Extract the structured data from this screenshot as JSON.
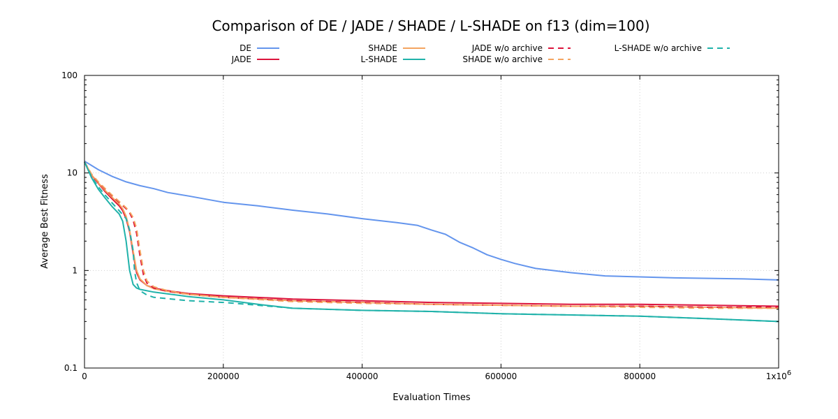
{
  "chart_data": {
    "type": "line",
    "title": "Comparison of DE / JADE / SHADE / L-SHADE on f13 (dim=100)",
    "xlabel": "Evaluation Times",
    "ylabel": "Average Best Fitness",
    "xlim": [
      0,
      1000000
    ],
    "ylim": [
      0.1,
      100
    ],
    "yscale": "log",
    "grid": true,
    "legend_position": "top",
    "x_ticks": [
      {
        "value": 0,
        "label": "0"
      },
      {
        "value": 200000,
        "label": "200000"
      },
      {
        "value": 400000,
        "label": "400000"
      },
      {
        "value": 600000,
        "label": "600000"
      },
      {
        "value": 800000,
        "label": "800000"
      }
    ],
    "x_max_label": {
      "value": 1000000,
      "base": "1x10",
      "exponent": "6"
    },
    "y_ticks": [
      {
        "value": 0.1,
        "label": "0.1"
      },
      {
        "value": 1,
        "label": "1"
      },
      {
        "value": 10,
        "label": "10"
      },
      {
        "value": 100,
        "label": "100"
      }
    ],
    "series": [
      {
        "name": "DE",
        "color": "#6495ED",
        "dash": "solid",
        "legend_col": 0,
        "legend_row": 0,
        "points": [
          [
            0,
            13.2
          ],
          [
            20000,
            10.8
          ],
          [
            40000,
            9.2
          ],
          [
            60000,
            8.1
          ],
          [
            80000,
            7.4
          ],
          [
            100000,
            6.9
          ],
          [
            120000,
            6.3
          ],
          [
            150000,
            5.8
          ],
          [
            200000,
            5.0
          ],
          [
            250000,
            4.6
          ],
          [
            300000,
            4.15
          ],
          [
            350000,
            3.8
          ],
          [
            400000,
            3.4
          ],
          [
            450000,
            3.1
          ],
          [
            480000,
            2.9
          ],
          [
            500000,
            2.6
          ],
          [
            520000,
            2.35
          ],
          [
            540000,
            1.95
          ],
          [
            560000,
            1.7
          ],
          [
            580000,
            1.45
          ],
          [
            600000,
            1.3
          ],
          [
            620000,
            1.18
          ],
          [
            650000,
            1.05
          ],
          [
            700000,
            0.95
          ],
          [
            750000,
            0.88
          ],
          [
            800000,
            0.86
          ],
          [
            850000,
            0.84
          ],
          [
            900000,
            0.83
          ],
          [
            950000,
            0.82
          ],
          [
            1000000,
            0.8
          ]
        ]
      },
      {
        "name": "JADE",
        "color": "#DC143C",
        "dash": "solid",
        "legend_col": 0,
        "legend_row": 1,
        "points": [
          [
            0,
            13.0
          ],
          [
            10000,
            9.5
          ],
          [
            20000,
            7.8
          ],
          [
            30000,
            6.4
          ],
          [
            40000,
            5.4
          ],
          [
            50000,
            4.6
          ],
          [
            55000,
            4.1
          ],
          [
            60000,
            3.4
          ],
          [
            65000,
            2.5
          ],
          [
            70000,
            1.5
          ],
          [
            75000,
            0.95
          ],
          [
            80000,
            0.8
          ],
          [
            90000,
            0.7
          ],
          [
            100000,
            0.66
          ],
          [
            120000,
            0.62
          ],
          [
            150000,
            0.58
          ],
          [
            200000,
            0.55
          ],
          [
            300000,
            0.51
          ],
          [
            400000,
            0.49
          ],
          [
            500000,
            0.47
          ],
          [
            600000,
            0.46
          ],
          [
            700000,
            0.45
          ],
          [
            800000,
            0.45
          ],
          [
            900000,
            0.44
          ],
          [
            1000000,
            0.43
          ]
        ]
      },
      {
        "name": "SHADE",
        "color": "#F4A460",
        "dash": "solid",
        "legend_col": 1,
        "legend_row": 0,
        "points": [
          [
            0,
            13.0
          ],
          [
            10000,
            9.6
          ],
          [
            20000,
            7.9
          ],
          [
            30000,
            6.6
          ],
          [
            40000,
            5.6
          ],
          [
            50000,
            4.8
          ],
          [
            55000,
            4.3
          ],
          [
            60000,
            3.6
          ],
          [
            65000,
            2.6
          ],
          [
            70000,
            1.6
          ],
          [
            75000,
            1.0
          ],
          [
            80000,
            0.82
          ],
          [
            90000,
            0.7
          ],
          [
            100000,
            0.65
          ],
          [
            120000,
            0.61
          ],
          [
            150000,
            0.57
          ],
          [
            200000,
            0.53
          ],
          [
            300000,
            0.49
          ],
          [
            400000,
            0.47
          ],
          [
            500000,
            0.45
          ],
          [
            600000,
            0.44
          ],
          [
            700000,
            0.43
          ],
          [
            800000,
            0.43
          ],
          [
            900000,
            0.42
          ],
          [
            1000000,
            0.41
          ]
        ]
      },
      {
        "name": "L-SHADE",
        "color": "#20B2AA",
        "dash": "solid",
        "legend_col": 1,
        "legend_row": 1,
        "points": [
          [
            0,
            13.0
          ],
          [
            10000,
            9.0
          ],
          [
            20000,
            6.8
          ],
          [
            30000,
            5.5
          ],
          [
            40000,
            4.5
          ],
          [
            50000,
            3.8
          ],
          [
            55000,
            3.2
          ],
          [
            60000,
            2.0
          ],
          [
            65000,
            1.0
          ],
          [
            70000,
            0.72
          ],
          [
            75000,
            0.66
          ],
          [
            80000,
            0.64
          ],
          [
            100000,
            0.6
          ],
          [
            150000,
            0.54
          ],
          [
            200000,
            0.5
          ],
          [
            250000,
            0.45
          ],
          [
            300000,
            0.41
          ],
          [
            400000,
            0.39
          ],
          [
            500000,
            0.38
          ],
          [
            600000,
            0.36
          ],
          [
            700000,
            0.35
          ],
          [
            800000,
            0.34
          ],
          [
            900000,
            0.32
          ],
          [
            1000000,
            0.3
          ]
        ]
      },
      {
        "name": "JADE w/o archive",
        "color": "#DC143C",
        "dash": "dashed",
        "legend_col": 2,
        "legend_row": 0,
        "points": [
          [
            0,
            13.0
          ],
          [
            10000,
            9.7
          ],
          [
            20000,
            8.0
          ],
          [
            30000,
            6.8
          ],
          [
            40000,
            5.8
          ],
          [
            50000,
            5.0
          ],
          [
            60000,
            4.3
          ],
          [
            65000,
            3.9
          ],
          [
            70000,
            3.3
          ],
          [
            75000,
            2.4
          ],
          [
            80000,
            1.4
          ],
          [
            85000,
            0.9
          ],
          [
            90000,
            0.74
          ],
          [
            100000,
            0.66
          ],
          [
            120000,
            0.61
          ],
          [
            150000,
            0.57
          ],
          [
            200000,
            0.53
          ],
          [
            300000,
            0.49
          ],
          [
            400000,
            0.47
          ],
          [
            500000,
            0.45
          ],
          [
            600000,
            0.44
          ],
          [
            700000,
            0.43
          ],
          [
            800000,
            0.43
          ],
          [
            900000,
            0.42
          ],
          [
            1000000,
            0.42
          ]
        ]
      },
      {
        "name": "SHADE w/o archive",
        "color": "#F4A460",
        "dash": "dashed",
        "legend_col": 2,
        "legend_row": 1,
        "points": [
          [
            0,
            13.0
          ],
          [
            10000,
            9.8
          ],
          [
            20000,
            8.1
          ],
          [
            30000,
            6.9
          ],
          [
            40000,
            5.9
          ],
          [
            50000,
            5.1
          ],
          [
            60000,
            4.4
          ],
          [
            65000,
            4.0
          ],
          [
            70000,
            3.5
          ],
          [
            75000,
            2.7
          ],
          [
            80000,
            1.6
          ],
          [
            85000,
            1.0
          ],
          [
            90000,
            0.78
          ],
          [
            100000,
            0.68
          ],
          [
            120000,
            0.62
          ],
          [
            150000,
            0.57
          ],
          [
            200000,
            0.53
          ],
          [
            300000,
            0.48
          ],
          [
            400000,
            0.46
          ],
          [
            500000,
            0.45
          ],
          [
            600000,
            0.44
          ],
          [
            700000,
            0.43
          ],
          [
            800000,
            0.42
          ],
          [
            900000,
            0.41
          ],
          [
            1000000,
            0.41
          ]
        ]
      },
      {
        "name": "L-SHADE w/o archive",
        "color": "#20B2AA",
        "dash": "dashed",
        "legend_col": 3,
        "legend_row": 0,
        "points": [
          [
            0,
            13.0
          ],
          [
            10000,
            9.2
          ],
          [
            20000,
            7.2
          ],
          [
            30000,
            5.9
          ],
          [
            40000,
            4.9
          ],
          [
            50000,
            4.1
          ],
          [
            60000,
            3.4
          ],
          [
            65000,
            2.6
          ],
          [
            70000,
            1.6
          ],
          [
            72000,
            1.0
          ],
          [
            75000,
            0.75
          ],
          [
            80000,
            0.62
          ],
          [
            90000,
            0.56
          ],
          [
            100000,
            0.53
          ],
          [
            150000,
            0.49
          ],
          [
            200000,
            0.47
          ],
          [
            250000,
            0.44
          ],
          [
            300000,
            0.41
          ],
          [
            400000,
            0.39
          ],
          [
            500000,
            0.38
          ],
          [
            600000,
            0.36
          ],
          [
            700000,
            0.35
          ],
          [
            800000,
            0.34
          ],
          [
            900000,
            0.32
          ],
          [
            1000000,
            0.3
          ]
        ]
      }
    ]
  }
}
